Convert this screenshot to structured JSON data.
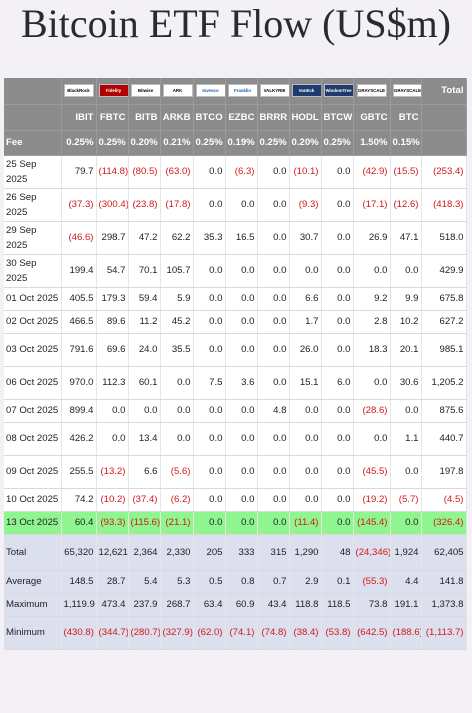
{
  "title": "Bitcoin ETF Flow (US$m)",
  "header": {
    "logos": [
      "BlackRock",
      "Fidelity",
      "Bitwise",
      "ARK",
      "Invesco",
      "Franklin",
      "VALKYRIE",
      "VanEck",
      "WisdomTree",
      "GRAYSCALE",
      "GRAYSCALE"
    ],
    "total_label": "Total",
    "tickers": [
      "IBIT",
      "FBTC",
      "BITB",
      "ARKB",
      "BTCO",
      "EZBC",
      "BRRR",
      "HODL",
      "BTCW",
      "GBTC",
      "BTC"
    ],
    "fee_label": "Fee",
    "fees": [
      "0.25%",
      "0.25%",
      "0.20%",
      "0.21%",
      "0.25%",
      "0.19%",
      "0.25%",
      "0.20%",
      "0.25%",
      "1.50%",
      "0.15%"
    ]
  },
  "rows": [
    {
      "date": "25 Sep 2025",
      "cells": [
        "79.7",
        "(114.8)",
        "(80.5)",
        "(63.0)",
        "0.0",
        "(6.3)",
        "0.0",
        "(10.1)",
        "0.0",
        "(42.9)",
        "(15.5)",
        "(253.4)"
      ]
    },
    {
      "date": "26 Sep 2025",
      "cells": [
        "(37.3)",
        "(300.4)",
        "(23.8)",
        "(17.8)",
        "0.0",
        "0.0",
        "0.0",
        "(9.3)",
        "0.0",
        "(17.1)",
        "(12.6)",
        "(418.3)"
      ]
    },
    {
      "date": "29 Sep 2025",
      "cells": [
        "(46.6)",
        "298.7",
        "47.2",
        "62.2",
        "35.3",
        "16.5",
        "0.0",
        "30.7",
        "0.0",
        "26.9",
        "47.1",
        "518.0"
      ]
    },
    {
      "date": "30 Sep 2025",
      "cells": [
        "199.4",
        "54.7",
        "70.1",
        "105.7",
        "0.0",
        "0.0",
        "0.0",
        "0.0",
        "0.0",
        "0.0",
        "0.0",
        "429.9"
      ]
    },
    {
      "date": "01 Oct 2025",
      "cells": [
        "405.5",
        "179.3",
        "59.4",
        "5.9",
        "0.0",
        "0.0",
        "0.0",
        "6.6",
        "0.0",
        "9.2",
        "9.9",
        "675.8"
      ]
    },
    {
      "date": "02 Oct 2025",
      "cells": [
        "466.5",
        "89.6",
        "11.2",
        "45.2",
        "0.0",
        "0.0",
        "0.0",
        "1.7",
        "0.0",
        "2.8",
        "10.2",
        "627.2"
      ]
    },
    {
      "date": "03 Oct 2025",
      "cells": [
        "791.6",
        "69.6",
        "24.0",
        "35.5",
        "0.0",
        "0.0",
        "0.0",
        "26.0",
        "0.0",
        "18.3",
        "20.1",
        "985.1"
      ]
    },
    {
      "date": "06 Oct 2025",
      "cells": [
        "970.0",
        "112.3",
        "60.1",
        "0.0",
        "7.5",
        "3.6",
        "0.0",
        "15.1",
        "6.0",
        "0.0",
        "30.6",
        "1,205.2"
      ]
    },
    {
      "date": "07 Oct 2025",
      "cells": [
        "899.4",
        "0.0",
        "0.0",
        "0.0",
        "0.0",
        "0.0",
        "4.8",
        "0.0",
        "0.0",
        "(28.6)",
        "0.0",
        "875.6"
      ]
    },
    {
      "date": "08 Oct 2025",
      "cells": [
        "426.2",
        "0.0",
        "13.4",
        "0.0",
        "0.0",
        "0.0",
        "0.0",
        "0.0",
        "0.0",
        "0.0",
        "1.1",
        "440.7"
      ]
    },
    {
      "date": "09 Oct 2025",
      "cells": [
        "255.5",
        "(13.2)",
        "6.6",
        "(5.6)",
        "0.0",
        "0.0",
        "0.0",
        "0.0",
        "0.0",
        "(45.5)",
        "0.0",
        "197.8"
      ]
    },
    {
      "date": "10 Oct 2025",
      "cells": [
        "74.2",
        "(10.2)",
        "(37.4)",
        "(6.2)",
        "0.0",
        "0.0",
        "0.0",
        "0.0",
        "0.0",
        "(19.2)",
        "(5.7)",
        "(4.5)"
      ]
    },
    {
      "date": "13 Oct 2025",
      "cells": [
        "60.4",
        "(93.3)",
        "(115.6)",
        "(21.1)",
        "0.0",
        "0.0",
        "0.0",
        "(11.4)",
        "0.0",
        "(145.4)",
        "0.0",
        "(326.4)"
      ]
    }
  ],
  "stats": [
    {
      "label": "Total",
      "cells": [
        "65,320",
        "12,621",
        "2,364",
        "2,330",
        "205",
        "333",
        "315",
        "1,290",
        "48",
        "(24,346)",
        "1,924",
        "62,405"
      ]
    },
    {
      "label": "Average",
      "cells": [
        "148.5",
        "28.7",
        "5.4",
        "5.3",
        "0.5",
        "0.8",
        "0.7",
        "2.9",
        "0.1",
        "(55.3)",
        "4.4",
        "141.8"
      ]
    },
    {
      "label": "Maximum",
      "cells": [
        "1,119.9",
        "473.4",
        "237.9",
        "268.7",
        "63.4",
        "60.9",
        "43.4",
        "118.8",
        "118.5",
        "73.8",
        "191.1",
        "1,373.8"
      ]
    },
    {
      "label": "Minimum",
      "cells": [
        "(430.8)",
        "(344.7)",
        "(280.7)",
        "(327.9)",
        "(62.0)",
        "(74.1)",
        "(74.8)",
        "(38.4)",
        "(53.8)",
        "(642.5)",
        "(188.6)",
        "(1,113.7)"
      ]
    }
  ],
  "colors": {
    "header_bg": "#8c8c8c",
    "highlight_row": "#8ff58f",
    "stats_bg": "#dcdfee",
    "negative": "#d41818"
  }
}
